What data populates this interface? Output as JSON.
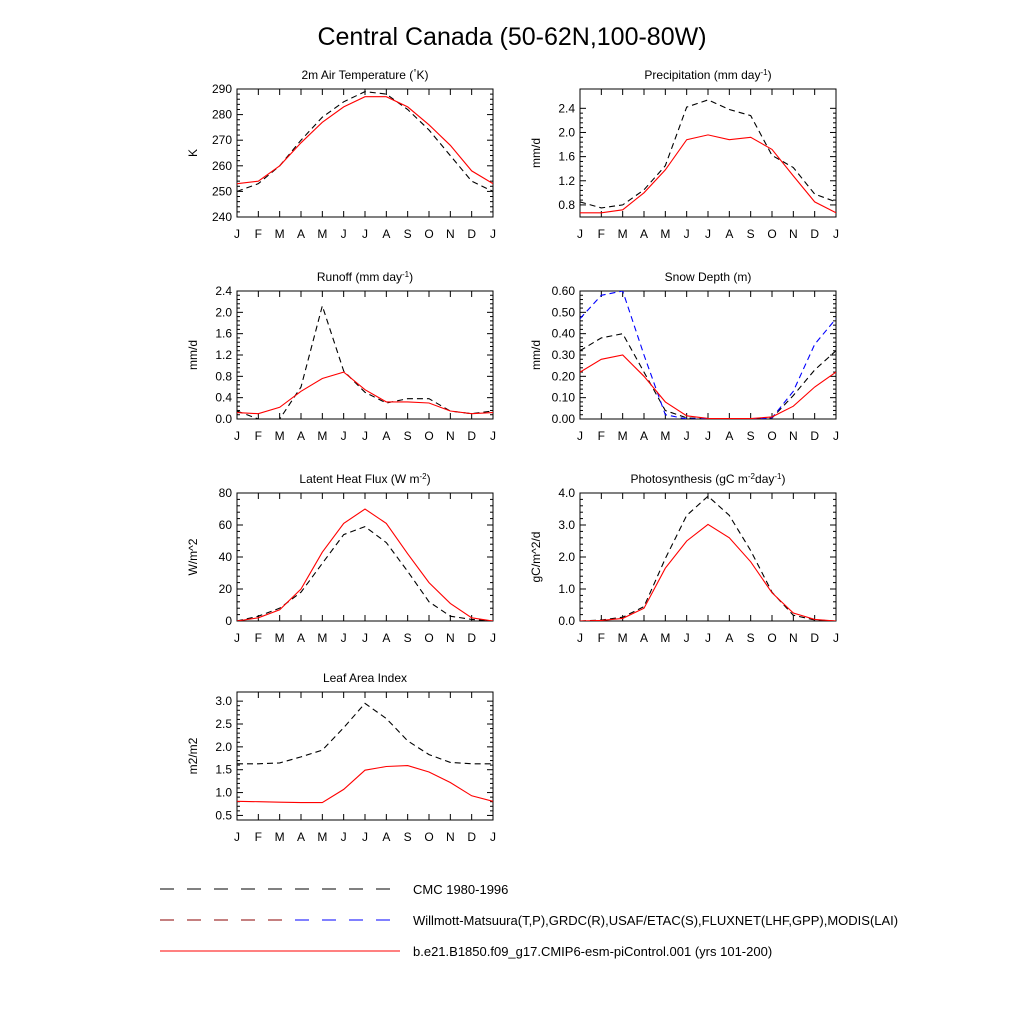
{
  "page_title": "Central Canada (50-62N,100-80W)",
  "chart_data": [
    {
      "type": "line",
      "title": "2m Air Temperature (°K)",
      "ylabel": "K",
      "x": [
        "J",
        "F",
        "M",
        "A",
        "M",
        "J",
        "J",
        "A",
        "S",
        "O",
        "N",
        "D",
        "J"
      ],
      "ylim": [
        240,
        290
      ],
      "yticks": [
        "240",
        "250",
        "260",
        "270",
        "280",
        "290"
      ],
      "series": [
        {
          "name": "CMC 1980-1996",
          "color": "#000000",
          "dash": true,
          "values": [
            250,
            253,
            260,
            270,
            279,
            285,
            289,
            288,
            282,
            274,
            264,
            254,
            250
          ]
        },
        {
          "name": "b.e21.B1850.f09_g17.CMIP6-esm-piControl.001 (yrs 101-200)",
          "color": "#ff0000",
          "dash": false,
          "values": [
            253,
            254,
            260,
            269,
            277,
            283,
            287,
            287,
            283,
            276,
            268,
            258,
            253
          ]
        }
      ]
    },
    {
      "type": "line",
      "title": "Precipitation (mm day-1)",
      "ylabel": "mm/d",
      "x": [
        "J",
        "F",
        "M",
        "A",
        "M",
        "J",
        "J",
        "A",
        "S",
        "O",
        "N",
        "D",
        "J"
      ],
      "ylim": [
        0.6,
        2.72
      ],
      "yticks": [
        "0.8",
        "1.2",
        "1.6",
        "2.0",
        "2.4"
      ],
      "series": [
        {
          "name": "Willmott-Matsuura(T,P)",
          "color": "#000000",
          "dash": true,
          "values": [
            0.85,
            0.75,
            0.8,
            1.05,
            1.45,
            2.42,
            2.54,
            2.38,
            2.28,
            1.62,
            1.42,
            0.98,
            0.85
          ]
        },
        {
          "name": "b.e21.B1850.f09_g17.CMIP6-esm-piControl.001 (yrs 101-200)",
          "color": "#ff0000",
          "dash": false,
          "values": [
            0.67,
            0.67,
            0.72,
            1.0,
            1.38,
            1.88,
            1.96,
            1.88,
            1.92,
            1.72,
            1.28,
            0.85,
            0.67
          ]
        }
      ]
    },
    {
      "type": "line",
      "title": "Runoff (mm day-1)",
      "ylabel": "mm/d",
      "x": [
        "J",
        "F",
        "M",
        "A",
        "M",
        "J",
        "J",
        "A",
        "S",
        "O",
        "N",
        "D",
        "J"
      ],
      "ylim": [
        0,
        2.4
      ],
      "yticks": [
        "0.0",
        "0.4",
        "0.8",
        "1.2",
        "1.6",
        "2.0",
        "2.4"
      ],
      "series": [
        {
          "name": "GRDC(R)",
          "color": "#000000",
          "dash": true,
          "values": [
            0.15,
            0.0,
            0.0,
            0.6,
            2.12,
            0.9,
            0.5,
            0.3,
            0.38,
            0.38,
            0.15,
            0.1,
            0.15
          ]
        },
        {
          "name": "b.e21.B1850.f09_g17.CMIP6-esm-piControl.001 (yrs 101-200)",
          "color": "#ff0000",
          "dash": false,
          "values": [
            0.12,
            0.1,
            0.22,
            0.52,
            0.76,
            0.88,
            0.55,
            0.32,
            0.32,
            0.3,
            0.15,
            0.1,
            0.12
          ]
        }
      ]
    },
    {
      "type": "line",
      "title": "Snow Depth (m)",
      "ylabel": "mm/d",
      "x": [
        "J",
        "F",
        "M",
        "A",
        "M",
        "J",
        "J",
        "A",
        "S",
        "O",
        "N",
        "D",
        "J"
      ],
      "ylim": [
        0,
        0.6
      ],
      "yticks": [
        "0.00",
        "0.10",
        "0.20",
        "0.30",
        "0.40",
        "0.50",
        "0.60"
      ],
      "series": [
        {
          "name": "CMC 1980-1996",
          "color": "#000000",
          "dash": true,
          "values": [
            0.32,
            0.38,
            0.4,
            0.22,
            0.04,
            0.005,
            0.0,
            0.0,
            0.0,
            0.005,
            0.11,
            0.23,
            0.32
          ]
        },
        {
          "name": "USAF/ETAC(S)",
          "color": "#0000ff",
          "dash": true,
          "values": [
            0.47,
            0.58,
            0.6,
            0.3,
            0.02,
            0.0,
            0.0,
            0.0,
            0.0,
            0.005,
            0.13,
            0.35,
            0.47
          ]
        },
        {
          "name": "b.e21.B1850.f09_g17.CMIP6-esm-piControl.001 (yrs 101-200)",
          "color": "#ff0000",
          "dash": false,
          "values": [
            0.22,
            0.28,
            0.3,
            0.2,
            0.08,
            0.015,
            0.003,
            0.002,
            0.002,
            0.01,
            0.06,
            0.15,
            0.22
          ]
        }
      ]
    },
    {
      "type": "line",
      "title": "Latent Heat Flux (W m-2)",
      "ylabel": "W/m^2",
      "x": [
        "J",
        "F",
        "M",
        "A",
        "M",
        "J",
        "J",
        "A",
        "S",
        "O",
        "N",
        "D",
        "J"
      ],
      "ylim": [
        0,
        80
      ],
      "yticks": [
        "0",
        "20",
        "40",
        "60",
        "80"
      ],
      "series": [
        {
          "name": "FLUXNET(LHF)",
          "color": "#000000",
          "dash": true,
          "values": [
            0,
            3,
            8,
            18,
            36,
            54,
            59,
            49,
            31,
            12,
            3,
            1,
            0
          ]
        },
        {
          "name": "b.e21.B1850.f09_g17.CMIP6-esm-piControl.001 (yrs 101-200)",
          "color": "#ff0000",
          "dash": false,
          "values": [
            0,
            2,
            7,
            20,
            43,
            61,
            70,
            61,
            42,
            24,
            11,
            2,
            0
          ]
        }
      ]
    },
    {
      "type": "line",
      "title": "Photosynthesis (gC m-2day-1)",
      "ylabel": "gC/m^2/d",
      "x": [
        "J",
        "F",
        "M",
        "A",
        "M",
        "J",
        "J",
        "A",
        "S",
        "O",
        "N",
        "D",
        "J"
      ],
      "ylim": [
        0,
        4
      ],
      "yticks": [
        "0.0",
        "1.0",
        "2.0",
        "3.0",
        "4.0"
      ],
      "series": [
        {
          "name": "FLUXNET(GPP)",
          "color": "#000000",
          "dash": true,
          "values": [
            0,
            0.03,
            0.12,
            0.45,
            1.95,
            3.3,
            3.9,
            3.3,
            2.2,
            0.9,
            0.18,
            0.03,
            0
          ]
        },
        {
          "name": "b.e21.B1850.f09_g17.CMIP6-esm-piControl.001 (yrs 101-200)",
          "color": "#ff0000",
          "dash": false,
          "values": [
            0,
            0.02,
            0.08,
            0.4,
            1.65,
            2.5,
            3.02,
            2.6,
            1.85,
            0.88,
            0.25,
            0.05,
            0
          ]
        }
      ]
    },
    {
      "type": "line",
      "title": "Leaf Area Index",
      "ylabel": "m2/m2",
      "x": [
        "J",
        "F",
        "M",
        "A",
        "M",
        "J",
        "J",
        "A",
        "S",
        "O",
        "N",
        "D",
        "J"
      ],
      "ylim": [
        0.4,
        3.2
      ],
      "yticks": [
        "0.5",
        "1.0",
        "1.5",
        "2.0",
        "2.5",
        "3.0"
      ],
      "series": [
        {
          "name": "MODIS(LAI)",
          "color": "#000000",
          "dash": true,
          "values": [
            1.63,
            1.63,
            1.65,
            1.78,
            1.93,
            2.42,
            2.95,
            2.62,
            2.13,
            1.83,
            1.66,
            1.63,
            1.63
          ]
        },
        {
          "name": "b.e21.B1850.f09_g17.CMIP6-esm-piControl.001 (yrs 101-200)",
          "color": "#ff0000",
          "dash": false,
          "values": [
            0.81,
            0.8,
            0.79,
            0.78,
            0.78,
            1.07,
            1.49,
            1.57,
            1.59,
            1.45,
            1.22,
            0.93,
            0.81
          ]
        }
      ]
    }
  ],
  "legend": [
    {
      "label": "CMC 1980-1996",
      "colors": [
        "#000000"
      ],
      "dash": true
    },
    {
      "label": "Willmott-Matsuura(T,P),GRDC(R),USAF/ETAC(S),FLUXNET(LHF,GPP),MODIS(LAI)",
      "colors": [
        "#8b0000",
        "#0000ff"
      ],
      "dash": true
    },
    {
      "label": "b.e21.B1850.f09_g17.CMIP6-esm-piControl.001 (yrs 101-200)",
      "colors": [
        "#ff0000"
      ],
      "dash": false
    }
  ]
}
